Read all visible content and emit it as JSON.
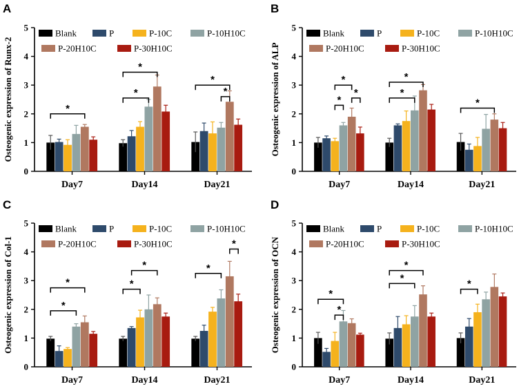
{
  "series_names": [
    "Blank",
    "P",
    "P-10C",
    "P-10H10C",
    "P-20H10C",
    "P-30H10C"
  ],
  "series_colors": [
    "#000000",
    "#2e4a6b",
    "#f5b21d",
    "#8fa3a3",
    "#b07860",
    "#a81b10"
  ],
  "categories": [
    "Day7",
    "Day14",
    "Day21"
  ],
  "significance_symbol": "*",
  "chart_data": [
    {
      "panel": "A",
      "type": "bar",
      "ylabel": "Osteogenic expression of Runx-2",
      "ylim": [
        0,
        5
      ],
      "yticks": [
        "0",
        "1",
        "2",
        "3",
        "4",
        "5"
      ],
      "categories": [
        "Day7",
        "Day14",
        "Day21"
      ],
      "legend": [
        "Blank",
        "P",
        "P-10C",
        "P-10H10C",
        "P-20H10C",
        "P-30H10C"
      ],
      "series": [
        {
          "name": "Blank",
          "values": [
            1.0,
            0.98,
            1.02
          ],
          "errors": [
            0.25,
            0.12,
            0.35
          ]
        },
        {
          "name": "P",
          "values": [
            1.02,
            1.22,
            1.4
          ],
          "errors": [
            0.1,
            0.2,
            0.28
          ]
        },
        {
          "name": "P-10C",
          "values": [
            0.92,
            1.55,
            1.32
          ],
          "errors": [
            0.18,
            0.18,
            0.4
          ]
        },
        {
          "name": "P-10H10C",
          "values": [
            1.3,
            2.25,
            1.52
          ],
          "errors": [
            0.3,
            0.25,
            0.18
          ]
        },
        {
          "name": "P-20H10C",
          "values": [
            1.55,
            2.95,
            2.42
          ],
          "errors": [
            0.08,
            0.4,
            0.38
          ]
        },
        {
          "name": "P-30H10C",
          "values": [
            1.1,
            2.08,
            1.62
          ],
          "errors": [
            0.1,
            0.22,
            0.2
          ]
        }
      ],
      "significance": [
        {
          "group": 0,
          "from": 0,
          "to": 4,
          "y": 2.0
        },
        {
          "group": 1,
          "from": 0,
          "to": 3,
          "y": 2.55
        },
        {
          "group": 1,
          "from": 0,
          "to": 4,
          "y": 3.45
        },
        {
          "group": 2,
          "from": 0,
          "to": 4,
          "y": 3.0
        },
        {
          "group": 2,
          "from": 3,
          "to": 4,
          "y": 2.6
        }
      ]
    },
    {
      "panel": "B",
      "type": "bar",
      "ylabel": "Osteogenic expression of ALP",
      "ylim": [
        0,
        5
      ],
      "yticks": [
        "0",
        "1",
        "2",
        "3",
        "4",
        "5"
      ],
      "categories": [
        "Day7",
        "Day14",
        "Day21"
      ],
      "legend": [
        "Blank",
        "P",
        "P-10C",
        "P-10H10C",
        "P-20H10C",
        "P-30H10C"
      ],
      "series": [
        {
          "name": "Blank",
          "values": [
            1.0,
            1.0,
            1.02
          ],
          "errors": [
            0.18,
            0.15,
            0.3
          ]
        },
        {
          "name": "P",
          "values": [
            1.15,
            1.6,
            0.75
          ],
          "errors": [
            0.08,
            0.05,
            0.2
          ]
        },
        {
          "name": "P-10C",
          "values": [
            1.05,
            1.75,
            0.88
          ],
          "errors": [
            0.1,
            0.35,
            0.3
          ]
        },
        {
          "name": "P-10H10C",
          "values": [
            1.6,
            2.12,
            1.48
          ],
          "errors": [
            0.1,
            0.5,
            0.5
          ]
        },
        {
          "name": "P-20H10C",
          "values": [
            1.9,
            2.82,
            1.8
          ],
          "errors": [
            0.3,
            0.2,
            0.2
          ]
        },
        {
          "name": "P-30H10C",
          "values": [
            1.32,
            2.15,
            1.5
          ],
          "errors": [
            0.22,
            0.18,
            0.2
          ]
        }
      ],
      "significance": [
        {
          "group": 0,
          "from": 2,
          "to": 3,
          "y": 2.3
        },
        {
          "group": 0,
          "from": 2,
          "to": 4,
          "y": 3.0
        },
        {
          "group": 0,
          "from": 4,
          "to": 5,
          "y": 2.55
        },
        {
          "group": 1,
          "from": 0,
          "to": 4,
          "y": 3.1
        },
        {
          "group": 1,
          "from": 0,
          "to": 3,
          "y": 2.55
        },
        {
          "group": 2,
          "from": 0,
          "to": 4,
          "y": 2.2
        }
      ]
    },
    {
      "panel": "C",
      "type": "bar",
      "ylabel": "Osteogenic expression of Col-1",
      "ylim": [
        0,
        5
      ],
      "yticks": [
        "0",
        "1",
        "2",
        "3",
        "4",
        "5"
      ],
      "categories": [
        "Day7",
        "Day14",
        "Day21"
      ],
      "legend": [
        "Blank",
        "P",
        "P-10C",
        "P-10H10C",
        "P-20H10C",
        "P-30H10C"
      ],
      "series": [
        {
          "name": "Blank",
          "values": [
            0.98,
            0.98,
            0.98
          ],
          "errors": [
            0.08,
            0.08,
            0.08
          ]
        },
        {
          "name": "P",
          "values": [
            0.55,
            1.35,
            1.25
          ],
          "errors": [
            0.18,
            0.05,
            0.2
          ]
        },
        {
          "name": "P-10C",
          "values": [
            0.62,
            1.72,
            1.92
          ],
          "errors": [
            0.05,
            0.25,
            0.15
          ]
        },
        {
          "name": "P-10H10C",
          "values": [
            1.4,
            2.0,
            2.38
          ],
          "errors": [
            0.1,
            0.5,
            0.3
          ]
        },
        {
          "name": "P-20H10C",
          "values": [
            1.55,
            2.18,
            3.15
          ],
          "errors": [
            0.22,
            0.22,
            0.52
          ]
        },
        {
          "name": "P-30H10C",
          "values": [
            1.15,
            1.75,
            2.28
          ],
          "errors": [
            0.08,
            0.12,
            0.25
          ]
        }
      ],
      "significance": [
        {
          "group": 0,
          "from": 0,
          "to": 3,
          "y": 1.95
        },
        {
          "group": 0,
          "from": 0,
          "to": 4,
          "y": 2.75
        },
        {
          "group": 1,
          "from": 0,
          "to": 2,
          "y": 2.7
        },
        {
          "group": 1,
          "from": 1,
          "to": 4,
          "y": 3.35
        },
        {
          "group": 2,
          "from": 0,
          "to": 3,
          "y": 3.25
        },
        {
          "group": 2,
          "from": 4,
          "to": 5,
          "y": 4.1
        }
      ]
    },
    {
      "panel": "D",
      "type": "bar",
      "ylabel": "Osteogenic expression of OCN",
      "ylim": [
        0,
        5
      ],
      "yticks": [
        "0",
        "1",
        "2",
        "3",
        "4",
        "5"
      ],
      "categories": [
        "Day7",
        "Day14",
        "Day21"
      ],
      "legend": [
        "Blank",
        "P",
        "P-10C",
        "P-10H10C",
        "P-20H10C",
        "P-30H10C"
      ],
      "series": [
        {
          "name": "Blank",
          "values": [
            1.0,
            0.98,
            1.0
          ],
          "errors": [
            0.2,
            0.2,
            0.18
          ]
        },
        {
          "name": "P",
          "values": [
            0.52,
            1.35,
            1.4
          ],
          "errors": [
            0.12,
            0.4,
            0.28
          ]
        },
        {
          "name": "P-10C",
          "values": [
            0.9,
            1.48,
            1.9
          ],
          "errors": [
            0.3,
            0.3,
            0.28
          ]
        },
        {
          "name": "P-10H10C",
          "values": [
            1.58,
            1.75,
            2.35
          ],
          "errors": [
            0.38,
            0.38,
            0.25
          ]
        },
        {
          "name": "P-20H10C",
          "values": [
            1.52,
            2.52,
            2.78
          ],
          "errors": [
            0.15,
            0.3,
            0.45
          ]
        },
        {
          "name": "P-30H10C",
          "values": [
            1.12,
            1.75,
            2.45
          ],
          "errors": [
            0.05,
            0.12,
            0.12
          ]
        }
      ],
      "significance": [
        {
          "group": 0,
          "from": 0,
          "to": 3,
          "y": 2.35
        },
        {
          "group": 0,
          "from": 2,
          "to": 3,
          "y": 1.8
        },
        {
          "group": 1,
          "from": 0,
          "to": 4,
          "y": 3.35
        },
        {
          "group": 1,
          "from": 0,
          "to": 3,
          "y": 2.9
        },
        {
          "group": 2,
          "from": 0,
          "to": 2,
          "y": 2.7
        }
      ]
    }
  ]
}
